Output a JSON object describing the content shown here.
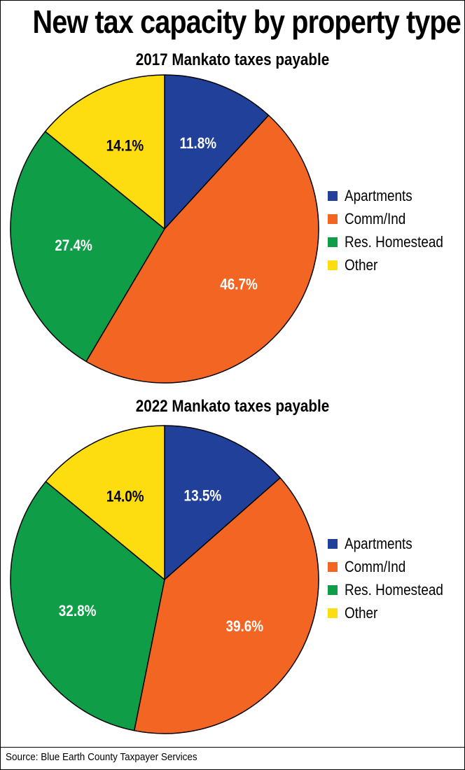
{
  "title": "New tax capacity by property type",
  "source": "Source: Blue Earth County Taxpayer Services",
  "colors": {
    "Apartments": "#21409a",
    "Comm/Ind": "#f26522",
    "Res. Homestead": "#0f9d48",
    "Other": "#fddc10"
  },
  "chart_data": [
    {
      "type": "pie",
      "title": "2017 Mankato taxes payable",
      "labels": [
        "Apartments",
        "Comm/Ind",
        "Res. Homestead",
        "Other"
      ],
      "values": [
        11.8,
        46.7,
        27.4,
        14.1
      ],
      "value_labels": [
        "11.8%",
        "46.7%",
        "27.4%",
        "14.1%"
      ],
      "legend": [
        "Apartments",
        "Comm/Ind",
        "Res. Homestead",
        "Other"
      ],
      "legend_position": "right"
    },
    {
      "type": "pie",
      "title": "2022 Mankato taxes payable",
      "labels": [
        "Apartments",
        "Comm/Ind",
        "Res. Homestead",
        "Other"
      ],
      "values": [
        13.5,
        39.6,
        32.8,
        14.0
      ],
      "value_labels": [
        "13.5%",
        "39.6%",
        "32.8%",
        "14.0%"
      ],
      "legend": [
        "Apartments",
        "Comm/Ind",
        "Res. Homestead",
        "Other"
      ],
      "legend_position": "right"
    }
  ]
}
